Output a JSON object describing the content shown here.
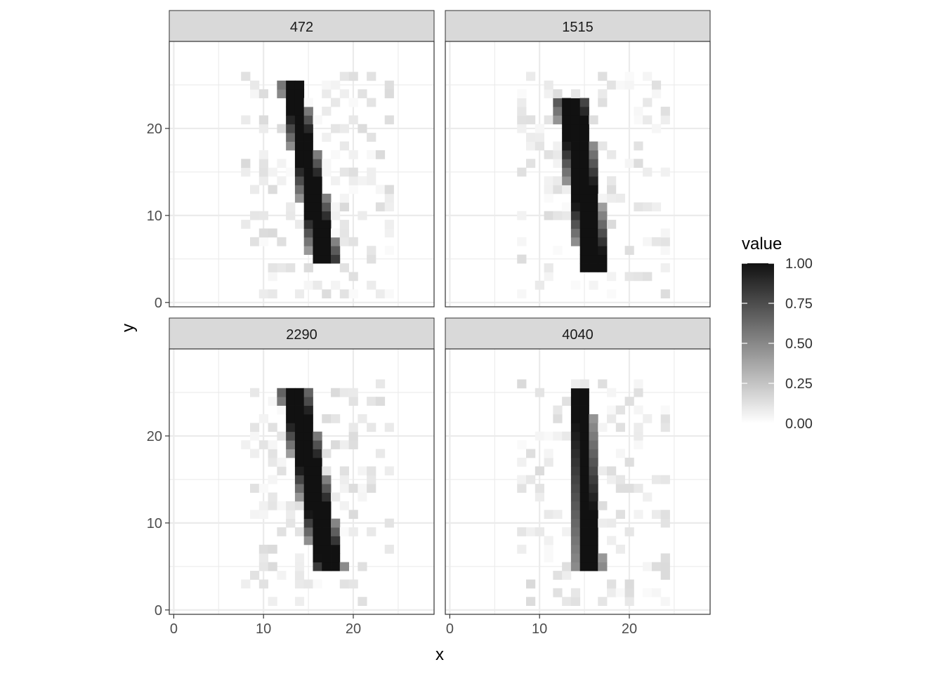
{
  "chart_data": {
    "type": "heatmap",
    "facets": [
      {
        "label": "472",
        "strokes": [
          {
            "x0": 12.5,
            "y0": 24.5,
            "x1": 14.0,
            "y1": 24.5,
            "x2": 15.8,
            "y2": 5.2,
            "x3": 17.8,
            "y3": 5.2
          }
        ]
      },
      {
        "label": "1515",
        "strokes": [
          {
            "x0": 12.3,
            "y0": 23.4,
            "x1": 14.7,
            "y1": 23.4,
            "x2": 15.0,
            "y2": 4.2,
            "x3": 17.2,
            "y3": 4.2
          }
        ]
      },
      {
        "label": "2290",
        "strokes": [
          {
            "x0": 12.4,
            "y0": 24.6,
            "x1": 14.6,
            "y1": 24.6,
            "x2": 16.2,
            "y2": 5.0,
            "x3": 18.4,
            "y3": 5.0
          }
        ]
      },
      {
        "label": "4040",
        "strokes": [
          {
            "x0": 13.9,
            "y0": 24.6,
            "x1": 15.2,
            "y1": 24.6,
            "x2": 14.6,
            "y2": 5.0,
            "x3": 16.4,
            "y3": 5.0
          }
        ]
      }
    ],
    "grid": {
      "x_min": 0,
      "x_max": 27,
      "y_min": 0,
      "y_max": 27,
      "cell_size": 1
    },
    "xlabel": "x",
    "ylabel": "y",
    "x_ticks": [
      0,
      10,
      20
    ],
    "y_ticks": [
      0,
      10,
      20
    ],
    "xlim": [
      -0.5,
      29
    ],
    "ylim": [
      -0.5,
      30
    ],
    "tick_labels": {
      "x": [
        "0",
        "10",
        "20"
      ],
      "y": [
        "0",
        "10",
        "20"
      ]
    },
    "legend": {
      "title": "value",
      "ticks": [
        "1.00",
        "0.75",
        "0.50",
        "0.25",
        "0.00"
      ],
      "tick_values": [
        1.0,
        0.75,
        0.5,
        0.25,
        0.0
      ],
      "range": [
        0,
        1
      ],
      "low_color": "#ffffff",
      "high_color": "#111111",
      "position": "right"
    },
    "theme": "bw",
    "grid_on": true,
    "colors": {
      "strip_fill": "#d9d9d9",
      "panel_border": "#333333",
      "gridline": "#ebebeb",
      "text": "#4d4d4d",
      "title_text": "#000000"
    }
  }
}
